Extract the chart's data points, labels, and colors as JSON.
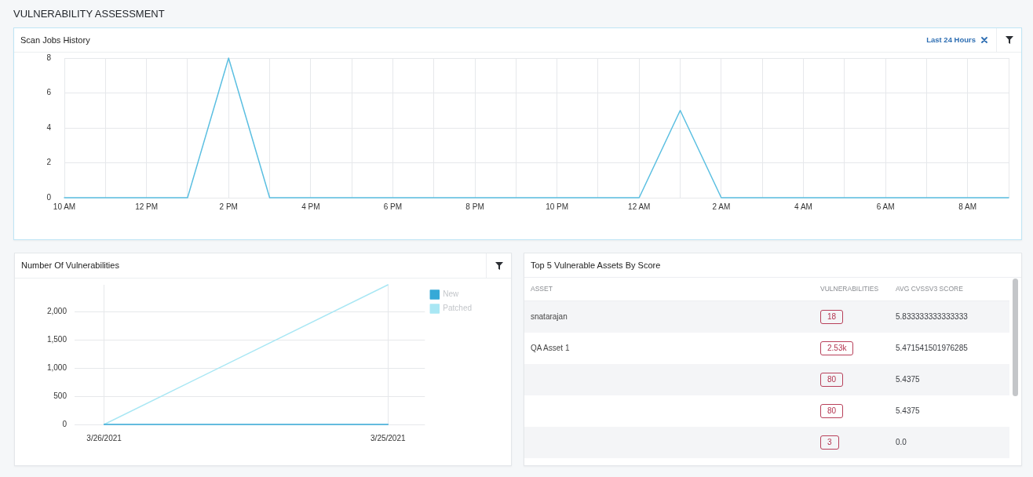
{
  "chart_data": [
    {
      "type": "other",
      "title": "VULNERABILITY ASSESSMENT"
    },
    {
      "type": "line",
      "title": "Scan Jobs History",
      "annotations": [
        "Last 24 Hours"
      ],
      "categories": [
        "10 AM",
        null,
        "12 PM",
        null,
        "2 PM",
        null,
        "4 PM",
        null,
        "6 PM",
        null,
        "8 PM",
        null,
        "10 PM",
        null,
        "12 AM",
        null,
        "2 AM",
        null,
        "4 AM",
        null,
        "6 AM",
        null,
        "8 AM",
        null
      ],
      "values": [
        0,
        0,
        0,
        0,
        8,
        0,
        0,
        0,
        0,
        0,
        0,
        0,
        0,
        0,
        0,
        5,
        0,
        0,
        0,
        0,
        0,
        0,
        0,
        0
      ],
      "color": "#5bbfe1",
      "ylim": [
        0,
        8
      ],
      "yticks": [
        0,
        2,
        4,
        6,
        8
      ],
      "grid": true
    },
    {
      "type": "line",
      "title": "Number Of Vulnerabilities",
      "categories": [
        "3/26/2021",
        "3/25/2021"
      ],
      "series": [
        {
          "name": "New",
          "color": "#36a9d7",
          "values": [
            0,
            0
          ]
        },
        {
          "name": "Patched",
          "color": "#a9e7f4",
          "values": [
            0,
            2480
          ]
        }
      ],
      "ylim": [
        0,
        2480
      ],
      "yticks": [
        0,
        500,
        {
          "value": 1000,
          "label": "1,000"
        },
        {
          "value": 1500,
          "label": "1,500"
        },
        {
          "value": 2000,
          "label": "2,000"
        }
      ],
      "grid": true,
      "legend": "top right"
    },
    {
      "type": "other",
      "title": "Top 5 Vulnerable Assets By Score",
      "ylabel": "ASSET",
      "categories": [
        "VULNERABILITIES",
        "AVG CVSSV3 SCORE"
      ],
      "y_categories": [
        "snatarajan",
        "QA Asset 1",
        null,
        null,
        null
      ],
      "cell_labels": [
        [
          "18",
          "5.833333333333333"
        ],
        [
          "2.53k",
          "5.471541501976285"
        ],
        [
          "80",
          "5.4375"
        ],
        [
          "80",
          "5.4375"
        ],
        [
          "3",
          "0.0"
        ]
      ]
    }
  ]
}
